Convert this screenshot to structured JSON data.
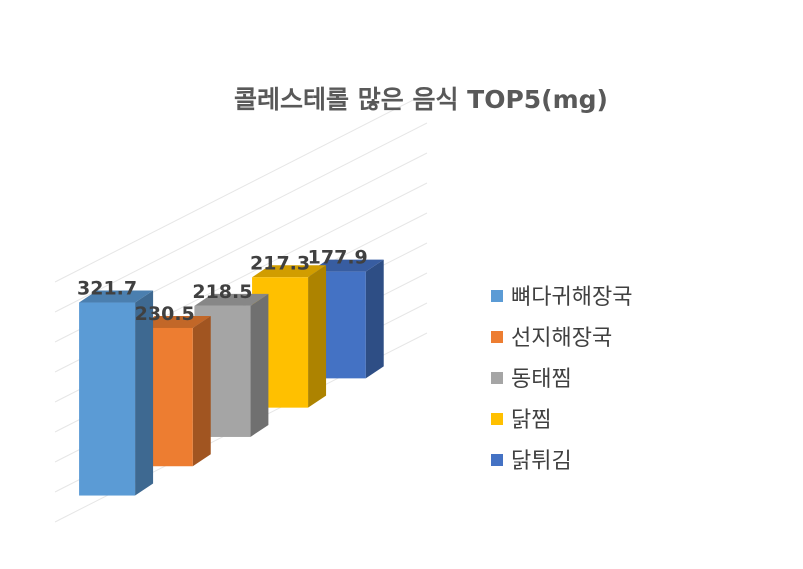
{
  "chart_data": {
    "type": "bar",
    "title": "콜레스테롤 많은 음식 TOP5(mg)",
    "categories": [
      ""
    ],
    "series": [
      {
        "name": "뼈다귀해장국",
        "values": [
          321.7
        ],
        "color": "#5B9BD5"
      },
      {
        "name": "선지해장국",
        "values": [
          230.5
        ],
        "color": "#ED7D31"
      },
      {
        "name": "동태찜",
        "values": [
          218.5
        ],
        "color": "#A5A5A5"
      },
      {
        "name": "닭찜",
        "values": [
          217.3
        ],
        "color": "#FFC000"
      },
      {
        "name": "닭튀김",
        "values": [
          177.9
        ],
        "color": "#4472C4"
      }
    ],
    "ylim": [
      0,
      400
    ],
    "grid": true,
    "legend": "right",
    "style": "3d-column"
  }
}
